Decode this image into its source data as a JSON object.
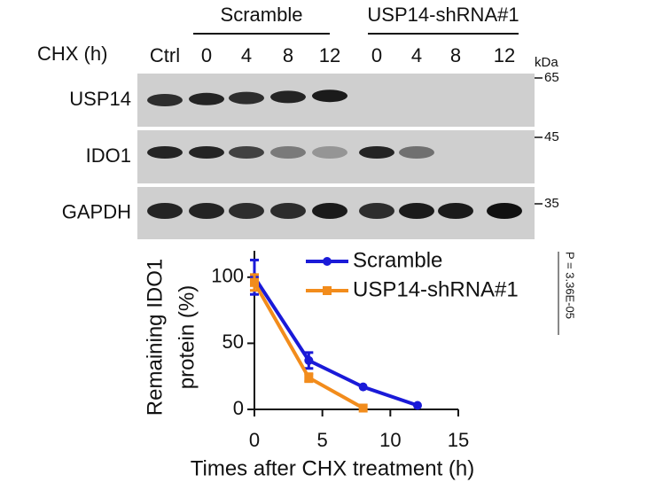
{
  "blot": {
    "groups": [
      "Scramble",
      "USP14-shRNA#1"
    ],
    "treatment_label": "CHX (h)",
    "lanes": [
      "Ctrl",
      "0",
      "4",
      "8",
      "12",
      "0",
      "4",
      "8",
      "12"
    ],
    "rows": [
      "USP14",
      "IDO1",
      "GAPDH"
    ],
    "unit": "kDa",
    "markers": [
      "65",
      "45",
      "35"
    ]
  },
  "chart_data": {
    "type": "line",
    "x": [
      0,
      4,
      8,
      12
    ],
    "series": [
      {
        "name": "Scramble",
        "color": "#1a1ad8",
        "values": [
          100,
          37,
          17,
          3
        ],
        "errors": [
          13,
          6,
          null,
          null
        ]
      },
      {
        "name": "USP14-shRNA#1",
        "color": "#f28c1c",
        "values": [
          96,
          24,
          1,
          null
        ],
        "errors": [
          6,
          3,
          null,
          null
        ]
      }
    ],
    "xlim": [
      0,
      15
    ],
    "xticks": [
      0,
      5,
      10,
      15
    ],
    "ylim": [
      0,
      120
    ],
    "yticks": [
      0,
      50,
      100
    ],
    "xlabel": "Times after CHX treatment (h)",
    "ylabel": [
      "Remaining IDO1",
      "protein (%)"
    ],
    "annotation": "P = 3.36E-05"
  }
}
